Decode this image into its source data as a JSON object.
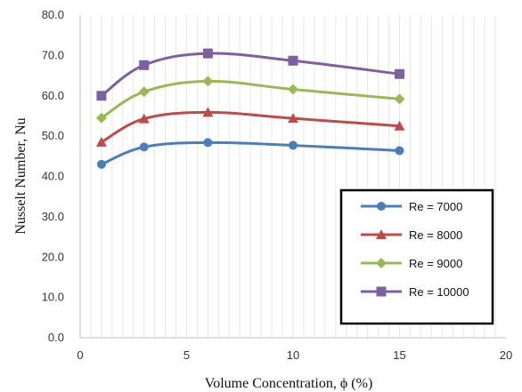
{
  "chart_data": {
    "type": "line",
    "title": "",
    "xlabel": "Volume Concentration, ϕ (%)",
    "ylabel": "Nusselt Number, Nu",
    "xlim": [
      0,
      20
    ],
    "ylim": [
      0,
      80
    ],
    "xticks": [
      0,
      5,
      10,
      15,
      20
    ],
    "yticks": [
      0,
      10,
      20,
      30,
      40,
      50,
      60,
      70,
      80
    ],
    "xtick_labels": [
      "0",
      "5",
      "10",
      "15",
      "20"
    ],
    "ytick_labels": [
      "0.0",
      "10.0",
      "20.0",
      "30.0",
      "40.0",
      "50.0",
      "60.0",
      "70.0",
      "80.0"
    ],
    "grid": "vertical minor lines",
    "legend_position": "bottom-right",
    "x": [
      1,
      3,
      6,
      10,
      15
    ],
    "series": [
      {
        "name": "Re = 7000",
        "values": [
          43.0,
          47.3,
          48.4,
          47.7,
          46.4
        ],
        "color": "#4a7ebb",
        "marker": "circle"
      },
      {
        "name": "Re = 8000",
        "values": [
          48.5,
          54.3,
          55.9,
          54.4,
          52.5
        ],
        "color": "#be4b48",
        "marker": "triangle"
      },
      {
        "name": "Re = 9000",
        "values": [
          54.5,
          61.0,
          63.6,
          61.6,
          59.2
        ],
        "color": "#98b954",
        "marker": "diamond"
      },
      {
        "name": "Re = 10000",
        "values": [
          60.0,
          67.6,
          70.5,
          68.7,
          65.4
        ],
        "color": "#7d60a0",
        "marker": "square"
      }
    ]
  }
}
